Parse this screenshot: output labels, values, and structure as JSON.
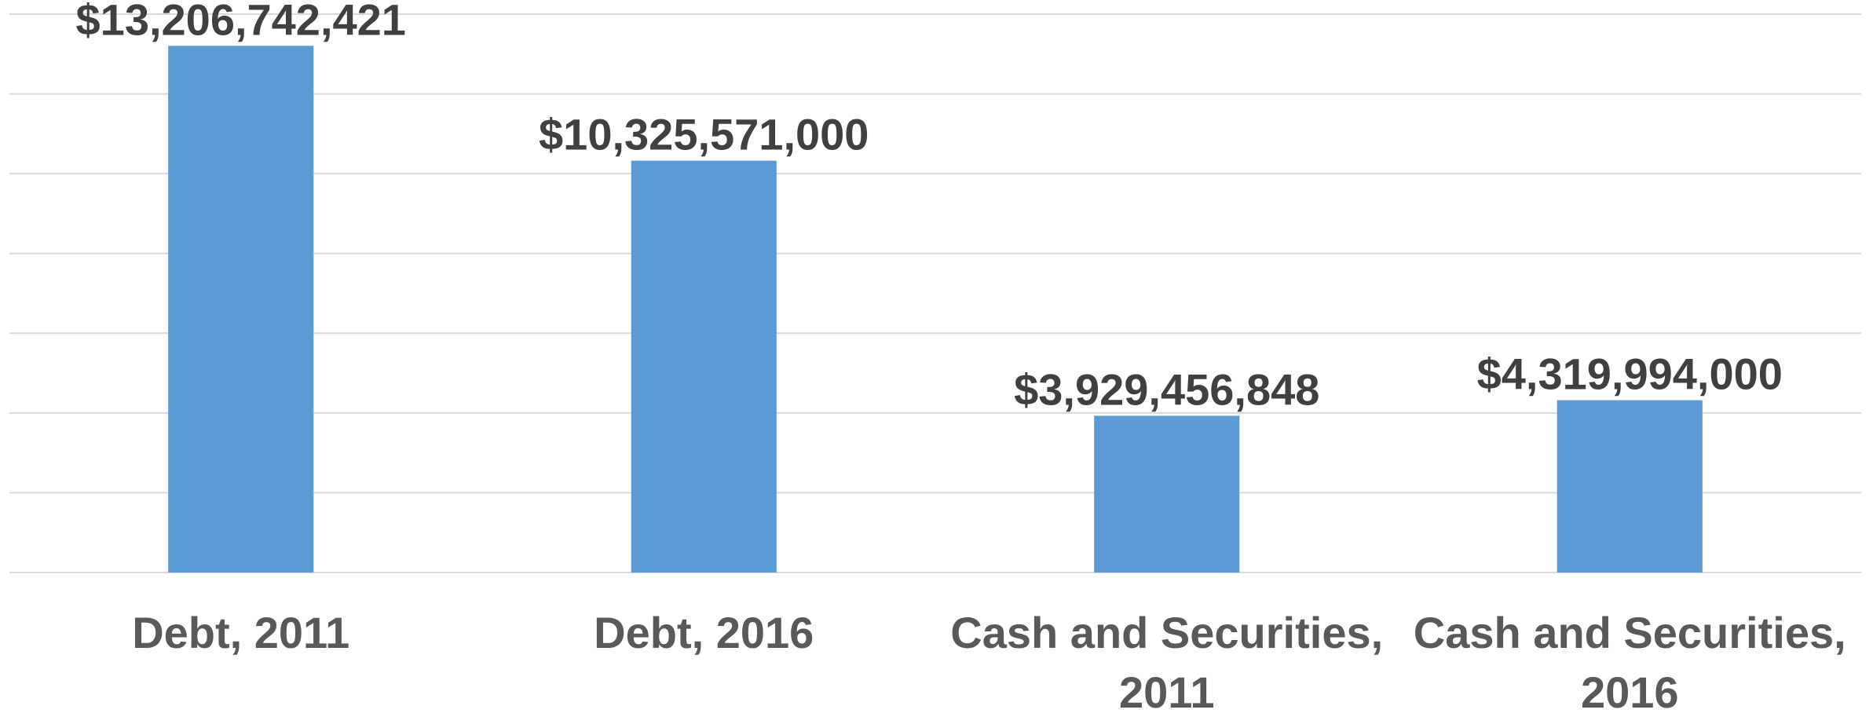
{
  "chart_data": {
    "type": "bar",
    "categories": [
      "Debt, 2011",
      "Debt, 2016",
      "Cash and Securities, 2011",
      "Cash and Securities, 2016"
    ],
    "values": [
      13206742421,
      10325571000,
      3929456848,
      4319994000
    ],
    "value_labels": [
      "$13,206,742,421",
      "$10,325,571,000",
      "$3,929,456,848",
      "$4,319,994,000"
    ],
    "color": "#5b9bd5",
    "ylim": [
      0,
      14000000000
    ],
    "yticks": [
      0,
      2000000000,
      4000000000,
      6000000000,
      8000000000,
      10000000000,
      12000000000,
      14000000000
    ],
    "grid": true
  }
}
